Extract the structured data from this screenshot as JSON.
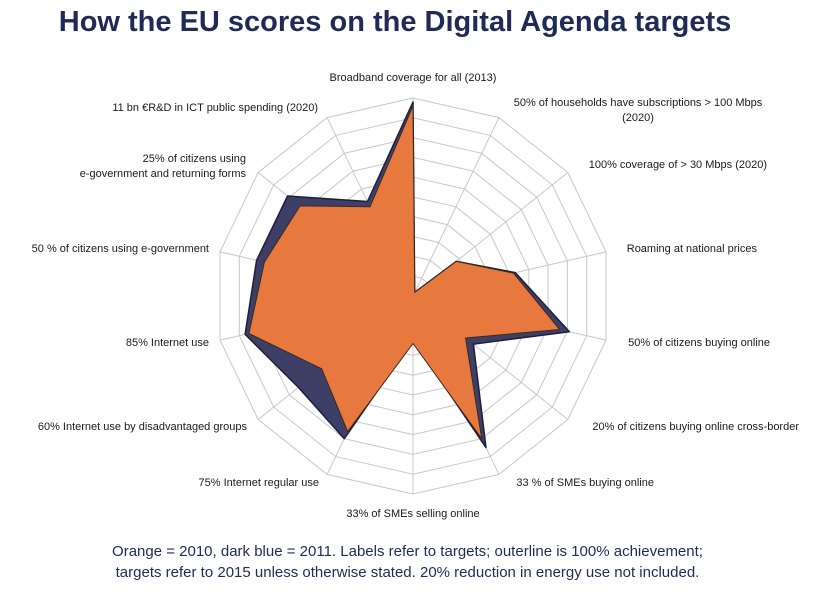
{
  "title": "How the EU scores on the Digital Agenda targets",
  "footnote": [
    "Orange = 2010, dark blue = 2011. Labels refer to targets; outerline is 100% achievement;",
    "targets refer to 2015 unless otherwise stated. 20% reduction in energy use not included."
  ],
  "colors": {
    "series_2010": "#e8793e",
    "series_2011": "#3e3f66",
    "grid": "#c8c8c8",
    "title": "#1f2a57",
    "label": "#1a1a1a"
  },
  "chart_data": {
    "type": "radar",
    "title": "How the EU scores on the Digital Agenda targets",
    "rlim": [
      0,
      100
    ],
    "grid_levels": 10,
    "categories": [
      "Broadband coverage for all (2013)",
      "50% of households have subscriptions > 100 Mbps (2020)",
      "100% coverage of > 30 Mbps (2020)",
      "Roaming at national prices",
      "50% of citizens buying online",
      "20% of citizens buying online cross-border",
      "33 % of SMEs buying online",
      "33% of SMEs selling online",
      "75% Internet regular use",
      "60% Internet use by disadvantaged groups",
      "85% Internet use",
      "50 % of citizens using e-government",
      "25% of citizens using e-government and returning forms",
      "11 bn €R&D in ICT public spending (2020)"
    ],
    "series": [
      {
        "name": "2011",
        "values": [
          98,
          2,
          28,
          53,
          81,
          39,
          85,
          22,
          80,
          74,
          87,
          81,
          81,
          53
        ]
      },
      {
        "name": "2010",
        "values": [
          96,
          2,
          28,
          52,
          76,
          34,
          80,
          24,
          76,
          59,
          85,
          77,
          73,
          50
        ]
      }
    ]
  }
}
